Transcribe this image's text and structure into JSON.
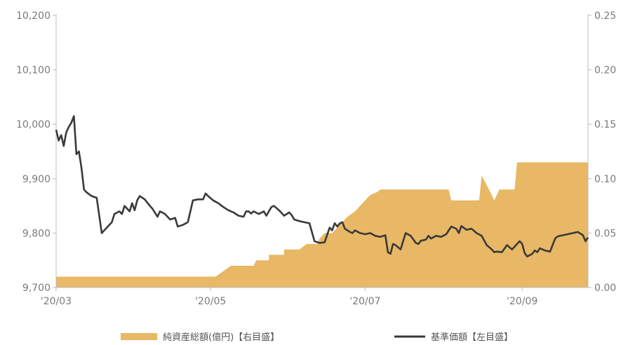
{
  "chart_data": {
    "type": "line",
    "colors": {
      "area": "#e8b866",
      "line": "#3a3a3a",
      "axis": "#bdbdbd",
      "text": "#7a7a7a"
    },
    "x_axis": {
      "ticks": [
        "'20/03",
        "'20/05",
        "'20/07",
        "'20/09"
      ],
      "tick_positions": [
        0,
        61,
        122,
        184
      ],
      "range": [
        0,
        210
      ]
    },
    "y_left": {
      "ticks": [
        "9,700",
        "9,800",
        "9,900",
        "10,000",
        "10,100",
        "10,200"
      ],
      "range": [
        9700,
        10200
      ]
    },
    "y_right": {
      "ticks": [
        "0.00",
        "0.05",
        "0.10",
        "0.15",
        "0.20",
        "0.25"
      ],
      "range": [
        0,
        0.25
      ]
    },
    "series": [
      {
        "name": "純資産総額(億円)【右目盛】",
        "kind": "area",
        "axis": "right",
        "points": [
          [
            0,
            0.01
          ],
          [
            63,
            0.01
          ],
          [
            66,
            0.015
          ],
          [
            69,
            0.02
          ],
          [
            78,
            0.02
          ],
          [
            79,
            0.025
          ],
          [
            84,
            0.025
          ],
          [
            84,
            0.03
          ],
          [
            90,
            0.03
          ],
          [
            90,
            0.035
          ],
          [
            96,
            0.035
          ],
          [
            99,
            0.04
          ],
          [
            103,
            0.04
          ],
          [
            104,
            0.045
          ],
          [
            106,
            0.05
          ],
          [
            109,
            0.05
          ],
          [
            111,
            0.055
          ],
          [
            113,
            0.06
          ],
          [
            115,
            0.065
          ],
          [
            118,
            0.07
          ],
          [
            120,
            0.075
          ],
          [
            122,
            0.08
          ],
          [
            124,
            0.085
          ],
          [
            127,
            0.088
          ],
          [
            128,
            0.09
          ],
          [
            140,
            0.09
          ],
          [
            155,
            0.09
          ],
          [
            156,
            0.08
          ],
          [
            167,
            0.08
          ],
          [
            168,
            0.103
          ],
          [
            172,
            0.085
          ],
          [
            173,
            0.08
          ],
          [
            175,
            0.09
          ],
          [
            181,
            0.09
          ],
          [
            182,
            0.115
          ],
          [
            210,
            0.115
          ]
        ]
      },
      {
        "name": "基準価額【左目盛】",
        "kind": "line",
        "axis": "left",
        "points": [
          [
            0,
            9990
          ],
          [
            1,
            9970
          ],
          [
            2,
            9980
          ],
          [
            3,
            9960
          ],
          [
            4,
            9985
          ],
          [
            5,
            9995
          ],
          [
            6,
            10003
          ],
          [
            7,
            10015
          ],
          [
            8,
            9945
          ],
          [
            9,
            9950
          ],
          [
            10,
            9920
          ],
          [
            11,
            9880
          ],
          [
            12,
            9875
          ],
          [
            14,
            9868
          ],
          [
            16,
            9865
          ],
          [
            18,
            9800
          ],
          [
            20,
            9810
          ],
          [
            22,
            9820
          ],
          [
            23,
            9835
          ],
          [
            25,
            9840
          ],
          [
            26,
            9835
          ],
          [
            27,
            9850
          ],
          [
            28,
            9845
          ],
          [
            29,
            9840
          ],
          [
            30,
            9855
          ],
          [
            31,
            9842
          ],
          [
            32,
            9860
          ],
          [
            33,
            9868
          ],
          [
            35,
            9862
          ],
          [
            37,
            9850
          ],
          [
            38,
            9845
          ],
          [
            40,
            9830
          ],
          [
            41,
            9840
          ],
          [
            43,
            9835
          ],
          [
            45,
            9825
          ],
          [
            47,
            9828
          ],
          [
            48,
            9812
          ],
          [
            50,
            9815
          ],
          [
            52,
            9820
          ],
          [
            54,
            9860
          ],
          [
            56,
            9862
          ],
          [
            58,
            9862
          ],
          [
            59,
            9873
          ],
          [
            60,
            9868
          ],
          [
            62,
            9860
          ],
          [
            64,
            9855
          ],
          [
            66,
            9848
          ],
          [
            68,
            9842
          ],
          [
            70,
            9838
          ],
          [
            72,
            9832
          ],
          [
            74,
            9830
          ],
          [
            75,
            9840
          ],
          [
            76,
            9840
          ],
          [
            77,
            9836
          ],
          [
            78,
            9840
          ],
          [
            80,
            9835
          ],
          [
            82,
            9840
          ],
          [
            83,
            9832
          ],
          [
            85,
            9848
          ],
          [
            86,
            9850
          ],
          [
            88,
            9842
          ],
          [
            90,
            9832
          ],
          [
            92,
            9838
          ],
          [
            93,
            9833
          ],
          [
            94,
            9825
          ],
          [
            96,
            9822
          ],
          [
            98,
            9820
          ],
          [
            100,
            9818
          ],
          [
            102,
            9785
          ],
          [
            104,
            9782
          ],
          [
            106,
            9783
          ],
          [
            108,
            9810
          ],
          [
            109,
            9805
          ],
          [
            110,
            9818
          ],
          [
            111,
            9812
          ],
          [
            112,
            9818
          ],
          [
            113,
            9820
          ],
          [
            114,
            9808
          ],
          [
            116,
            9802
          ],
          [
            117,
            9800
          ],
          [
            118,
            9805
          ],
          [
            120,
            9800
          ],
          [
            122,
            9798
          ],
          [
            124,
            9800
          ],
          [
            126,
            9795
          ],
          [
            128,
            9793
          ],
          [
            130,
            9796
          ],
          [
            131,
            9765
          ],
          [
            132,
            9762
          ],
          [
            133,
            9780
          ],
          [
            134,
            9778
          ],
          [
            136,
            9770
          ],
          [
            137,
            9785
          ],
          [
            138,
            9800
          ],
          [
            140,
            9795
          ],
          [
            142,
            9782
          ],
          [
            143,
            9780
          ],
          [
            144,
            9786
          ],
          [
            146,
            9788
          ],
          [
            147,
            9795
          ],
          [
            148,
            9790
          ],
          [
            150,
            9795
          ],
          [
            152,
            9793
          ],
          [
            154,
            9798
          ],
          [
            156,
            9812
          ],
          [
            158,
            9808
          ],
          [
            159,
            9800
          ],
          [
            160,
            9813
          ],
          [
            162,
            9806
          ],
          [
            164,
            9808
          ],
          [
            166,
            9800
          ],
          [
            168,
            9795
          ],
          [
            170,
            9778
          ],
          [
            172,
            9770
          ],
          [
            173,
            9765
          ],
          [
            174,
            9766
          ],
          [
            176,
            9765
          ],
          [
            178,
            9778
          ],
          [
            180,
            9770
          ],
          [
            182,
            9780
          ],
          [
            183,
            9785
          ],
          [
            184,
            9780
          ],
          [
            185,
            9763
          ],
          [
            186,
            9757
          ],
          [
            188,
            9762
          ],
          [
            189,
            9768
          ],
          [
            190,
            9765
          ],
          [
            191,
            9772
          ],
          [
            193,
            9768
          ],
          [
            195,
            9766
          ],
          [
            196,
            9778
          ],
          [
            197,
            9790
          ],
          [
            198,
            9794
          ],
          [
            199,
            9795
          ],
          [
            200,
            9796
          ],
          [
            202,
            9798
          ],
          [
            204,
            9800
          ],
          [
            206,
            9802
          ],
          [
            208,
            9796
          ],
          [
            209,
            9785
          ],
          [
            210,
            9792
          ]
        ]
      }
    ],
    "legend": {
      "placement": "bottom"
    }
  }
}
